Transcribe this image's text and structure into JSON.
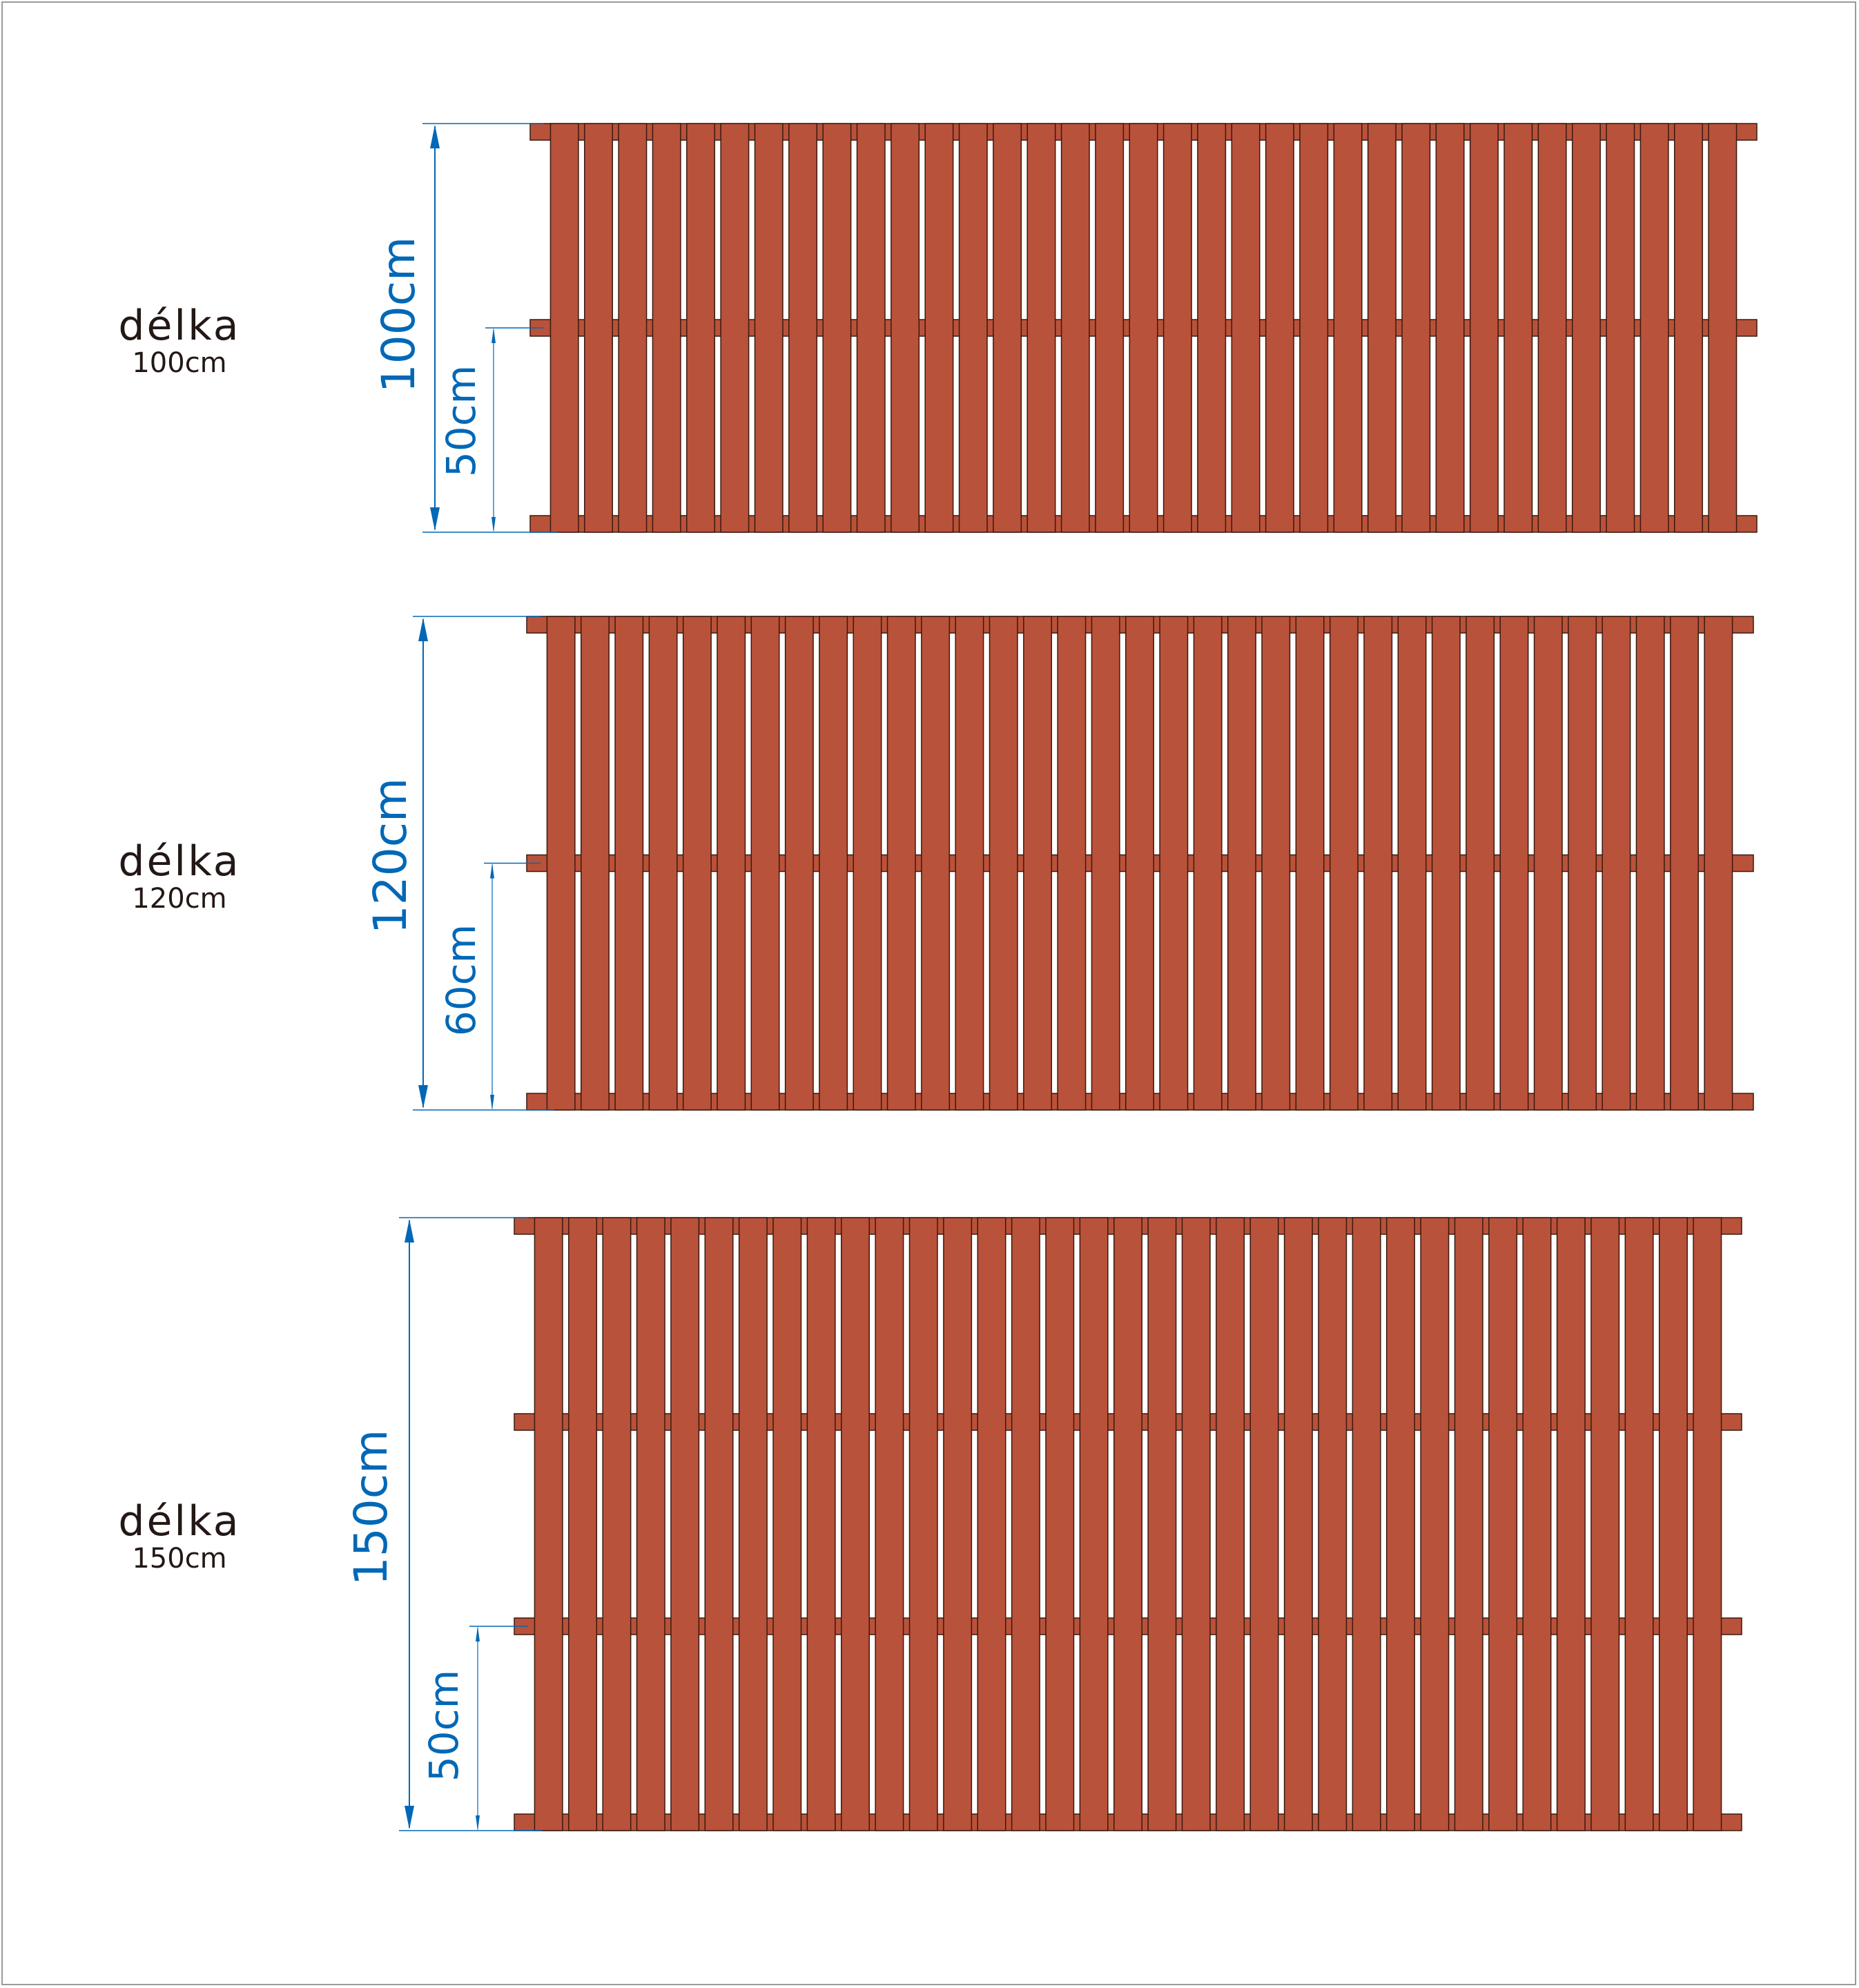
{
  "colors": {
    "wood": "#b9523a",
    "outline": "#3a1a10",
    "dimension": "#0068b7",
    "text": "#231815"
  },
  "mats": [
    {
      "title": "délka",
      "size_label": "100cm",
      "total_dimension": "100cm",
      "segment_dimension": "50cm",
      "length_cm": 100,
      "segment_cm": 50,
      "slat_count": 35,
      "rail_count": 3
    },
    {
      "title": "délka",
      "size_label": "120cm",
      "total_dimension": "120cm",
      "segment_dimension": "60cm",
      "length_cm": 120,
      "segment_cm": 60,
      "slat_count": 35,
      "rail_count": 3
    },
    {
      "title": "délka",
      "size_label": "150cm",
      "total_dimension": "150cm",
      "segment_dimension": "50cm",
      "length_cm": 150,
      "segment_cm": 50,
      "slat_count": 35,
      "rail_count": 4
    }
  ]
}
